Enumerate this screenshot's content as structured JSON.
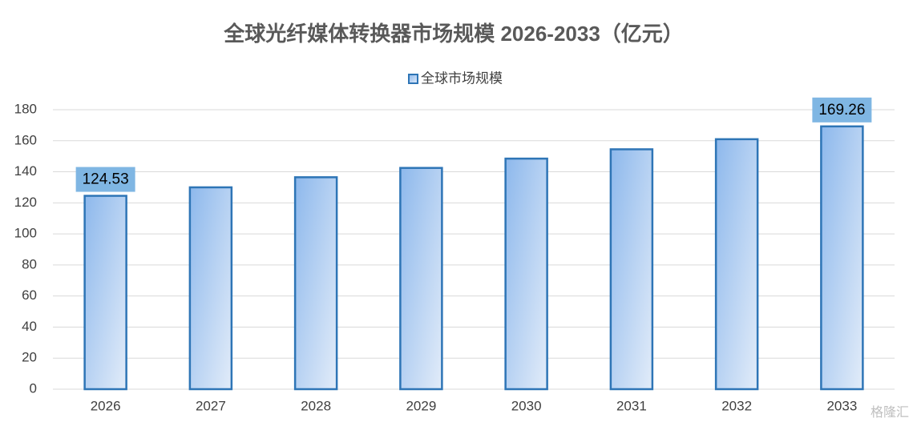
{
  "chart_data": {
    "type": "bar",
    "title": "全球光纤媒体转换器市场规模 2026-2033（亿元）",
    "categories": [
      "2026",
      "2027",
      "2028",
      "2029",
      "2030",
      "2031",
      "2032",
      "2033"
    ],
    "series": [
      {
        "name": "全球市场规模",
        "color": "#2e75b6",
        "values": [
          124.53,
          130,
          136.5,
          142.5,
          148.5,
          154.5,
          161,
          169.26
        ],
        "value_labels": [
          "124.53",
          null,
          null,
          null,
          null,
          null,
          null,
          "169.26"
        ]
      }
    ],
    "ylim": [
      0,
      180
    ],
    "yticks": [
      0,
      20,
      40,
      60,
      80,
      100,
      120,
      140,
      160,
      180
    ],
    "grid": true,
    "legend": "top",
    "watermark": "格隆汇"
  }
}
